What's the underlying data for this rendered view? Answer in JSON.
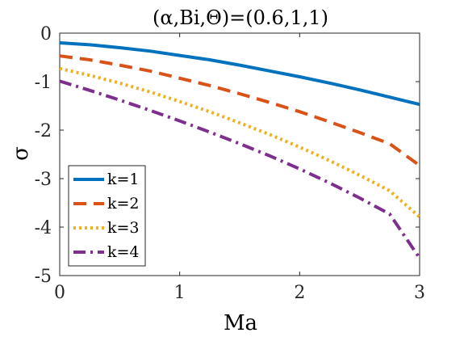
{
  "chart_data": {
    "type": "line",
    "title": "(α,Bi,Θ)=(0.6,1,1)",
    "xlabel": "Ma",
    "ylabel": "σ",
    "xlim": [
      0,
      3
    ],
    "ylim": [
      -5,
      0
    ],
    "xticks": [
      0,
      1,
      2,
      3
    ],
    "yticks": [
      0,
      -1,
      -2,
      -3,
      -4,
      -5
    ],
    "grid": false,
    "legend_position": "bottom-left",
    "x": [
      0,
      0.25,
      0.5,
      0.75,
      1,
      1.25,
      1.5,
      1.75,
      2,
      2.25,
      2.5,
      2.75,
      3
    ],
    "series": [
      {
        "name": "k=1",
        "color": "#0072BD",
        "dash": "solid",
        "values": [
          -0.2,
          -0.24,
          -0.3,
          -0.37,
          -0.46,
          -0.55,
          -0.66,
          -0.78,
          -0.9,
          -1.03,
          -1.17,
          -1.32,
          -1.47
        ]
      },
      {
        "name": "k=2",
        "color": "#D95319",
        "dash": "dashed",
        "values": [
          -0.47,
          -0.55,
          -0.66,
          -0.78,
          -0.93,
          -1.08,
          -1.25,
          -1.43,
          -1.62,
          -1.83,
          -2.05,
          -2.28,
          -2.73
        ]
      },
      {
        "name": "k=3",
        "color": "#EDB120",
        "dash": "dotted",
        "values": [
          -0.73,
          -0.87,
          -1.03,
          -1.21,
          -1.41,
          -1.62,
          -1.85,
          -2.09,
          -2.35,
          -2.63,
          -2.93,
          -3.25,
          -3.79
        ]
      },
      {
        "name": "k=4",
        "color": "#7E2F8E",
        "dash": "dashdot",
        "values": [
          -0.99,
          -1.18,
          -1.38,
          -1.59,
          -1.81,
          -2.04,
          -2.28,
          -2.53,
          -2.8,
          -3.09,
          -3.4,
          -3.73,
          -4.64
        ]
      }
    ]
  }
}
